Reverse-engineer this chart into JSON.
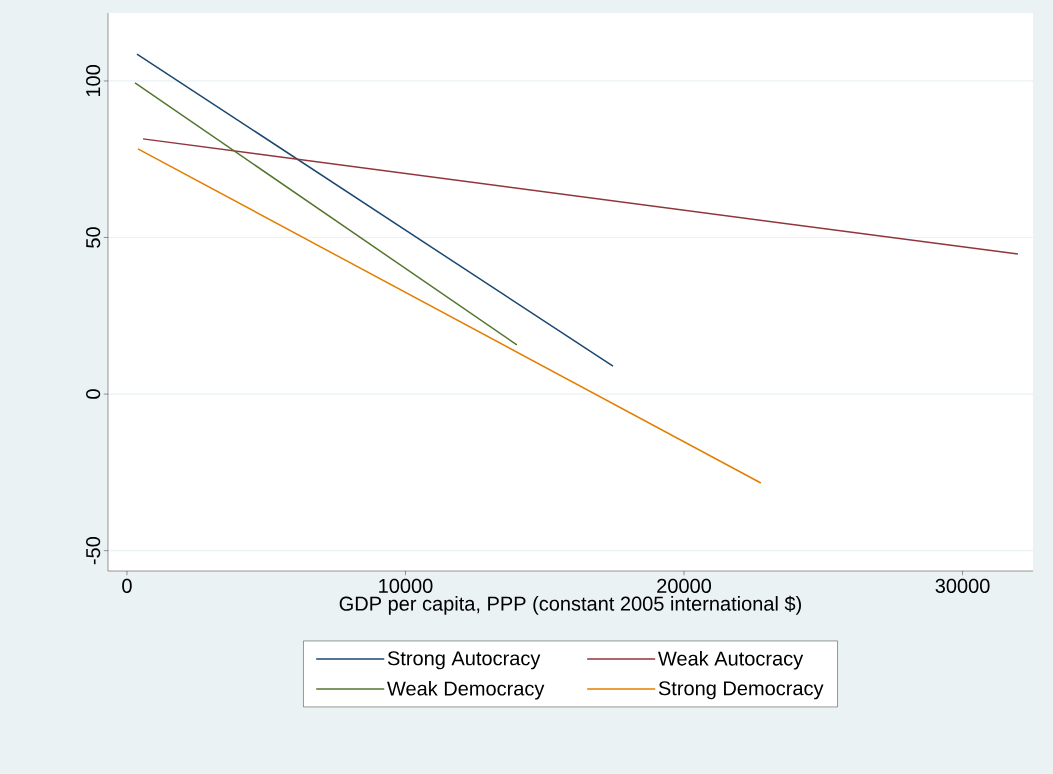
{
  "chart_data": {
    "type": "line",
    "xlabel": "GDP per capita, PPP (constant 2005 international $)",
    "xlim": [
      -680,
      32530
    ],
    "ylim": [
      -56.5,
      121.7
    ],
    "xticks": [
      0,
      10000,
      20000,
      30000
    ],
    "yticks": [
      -50,
      0,
      50,
      100
    ],
    "grid": "y",
    "legend": "bottom",
    "marker": "none",
    "line_style": "solid",
    "series": [
      {
        "name": "Strong Autocracy",
        "color": "#1a476f",
        "x": [
          360,
          17450
        ],
        "values": [
          108.6,
          8.9
        ]
      },
      {
        "name": "Weak Autocracy",
        "color": "#90353b",
        "x": [
          575,
          31990
        ],
        "values": [
          81.5,
          44.7
        ]
      },
      {
        "name": "Weak Democracy",
        "color": "#55752f",
        "x": [
          290,
          14000
        ],
        "values": [
          99.4,
          15.7
        ]
      },
      {
        "name": "Strong Democracy",
        "color": "#e37e00",
        "x": [
          395,
          22760
        ],
        "values": [
          78.3,
          -28.4
        ]
      }
    ]
  }
}
